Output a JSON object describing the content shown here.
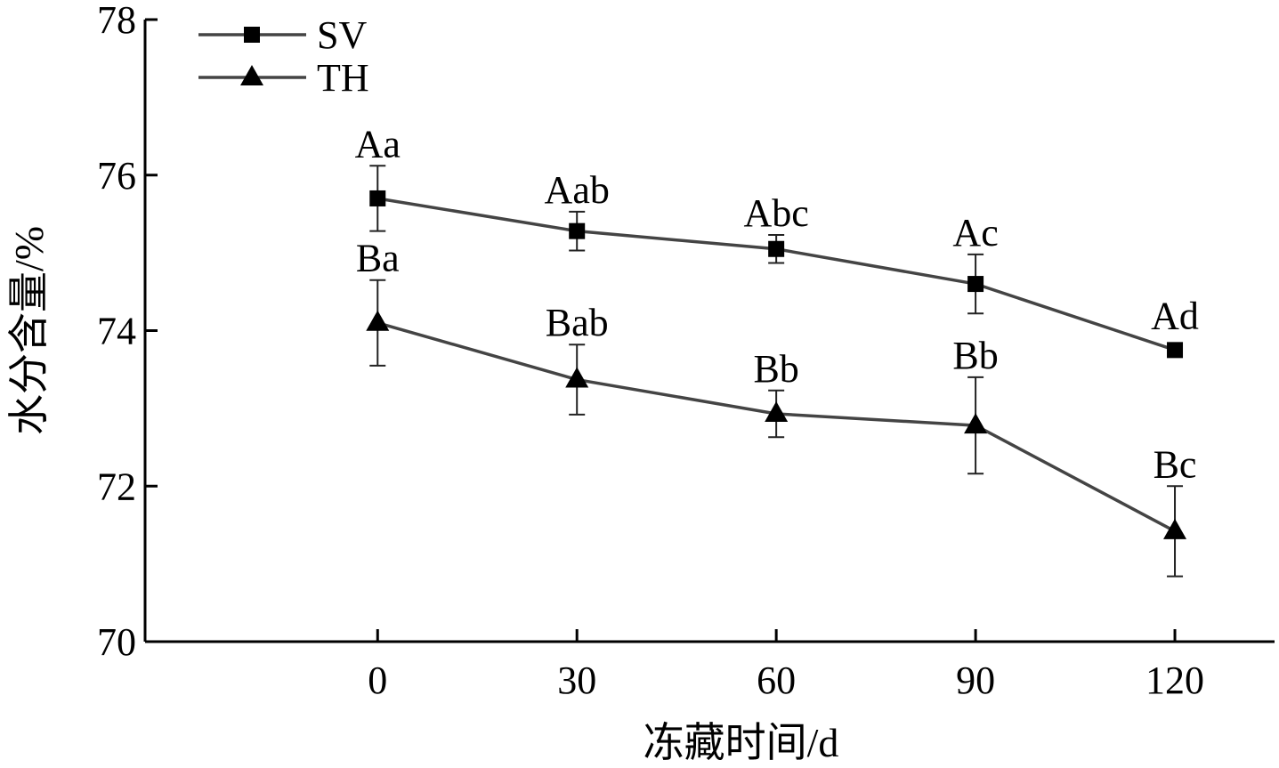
{
  "chart_data": {
    "type": "line",
    "xlabel": "冻藏时间/d",
    "ylabel": "水分含量/%",
    "xlim": [
      -35,
      135
    ],
    "ylim": [
      70,
      78
    ],
    "x_ticks": [
      0,
      30,
      60,
      90,
      120
    ],
    "y_ticks": [
      70,
      72,
      74,
      76,
      78
    ],
    "x_tick_labels": [
      "0",
      "30",
      "60",
      "90",
      "120"
    ],
    "y_tick_labels": [
      "70",
      "72",
      "74",
      "76",
      "78"
    ],
    "legend_position": "top-left",
    "grid": false,
    "series": [
      {
        "name": "SV",
        "marker": "square",
        "color": "#444444",
        "x": [
          0,
          30,
          60,
          90,
          120
        ],
        "y": [
          75.7,
          75.28,
          75.05,
          74.6,
          73.75
        ],
        "error": [
          0.42,
          0.25,
          0.18,
          0.38,
          0.0
        ],
        "labels": [
          "Aa",
          "Aab",
          "Abc",
          "Ac",
          "Ad"
        ]
      },
      {
        "name": "TH",
        "marker": "triangle",
        "color": "#444444",
        "x": [
          0,
          30,
          60,
          90,
          120
        ],
        "y": [
          74.1,
          73.37,
          72.93,
          72.78,
          71.42
        ],
        "error": [
          0.55,
          0.45,
          0.3,
          0.62,
          0.58
        ],
        "labels": [
          "Ba",
          "Bab",
          "Bb",
          "Bb",
          "Bc"
        ]
      }
    ]
  }
}
